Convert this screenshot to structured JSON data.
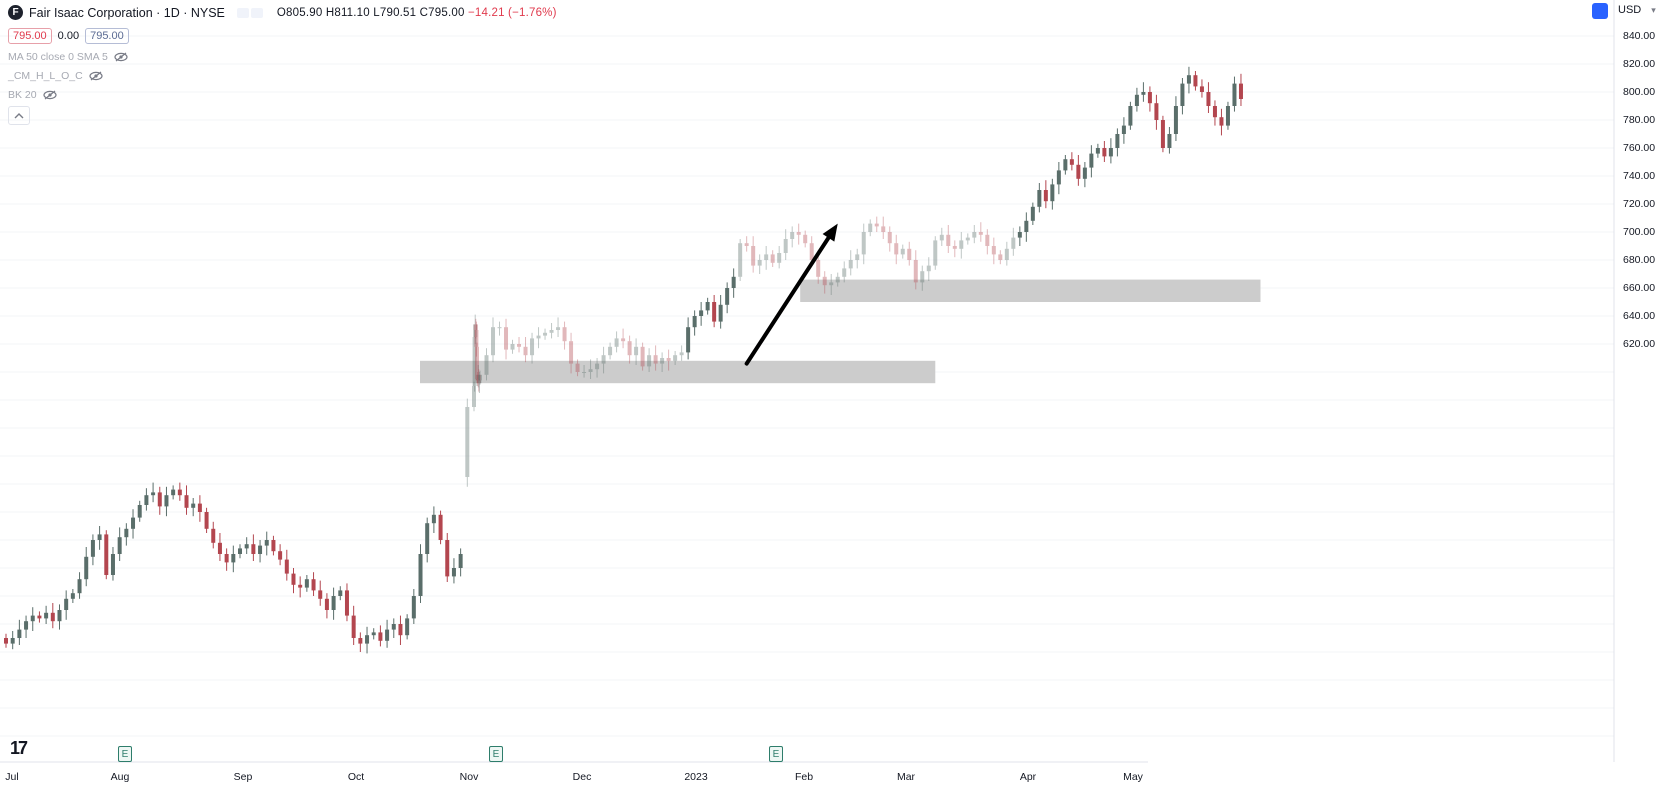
{
  "header": {
    "symbol_logo": "F",
    "title": "Fair Isaac Corporation · 1D · NYSE",
    "ohlc": {
      "open": "O805.90",
      "high": "H811.10",
      "low": "L790.51",
      "close": "C795.00",
      "change": "−14.21 (−1.76%)"
    },
    "sell_price": "795.00",
    "spread": "0.00",
    "buy_price": "795.00",
    "currency": "USD"
  },
  "indicators": [
    {
      "label": "MA 50 close 0 SMA 5",
      "icon": "eye-crossed-icon"
    },
    {
      "label": "_CM_H_L_O_C",
      "icon": "eye-crossed-icon"
    },
    {
      "label": "BK 20",
      "icon": "eye-crossed-icon"
    }
  ],
  "branding": {
    "logo": "17"
  },
  "earnings_markers": [
    {
      "label": "E",
      "x": "2022-07-28"
    },
    {
      "label": "E",
      "x": "2022-11-03"
    },
    {
      "label": "E",
      "x": "2023-01-26"
    }
  ],
  "colors": {
    "up": "#5a6e6a",
    "down": "#b3464f",
    "zone": "#c8c8c8",
    "arrow": "#000000"
  },
  "chart_data": {
    "type": "candlestick",
    "title": "Fair Isaac Corporation · 1D · NYSE",
    "x_labels": [
      "Jul",
      "Aug",
      "Sep",
      "Oct",
      "Nov",
      "Dec",
      "2023",
      "Feb",
      "Mar",
      "Apr",
      "May"
    ],
    "x_label_dates": [
      "2022-07-01",
      "2022-08-01",
      "2022-09-01",
      "2022-10-01",
      "2022-11-01",
      "2022-12-01",
      "2023-01-01",
      "2023-02-01",
      "2023-03-01",
      "2023-04-01",
      "2023-05-01"
    ],
    "y_ticks": [
      620,
      640,
      660,
      680,
      700,
      720,
      740,
      760,
      780,
      800,
      820,
      840
    ],
    "y_tick_labels": [
      "620.00",
      "640.00",
      "660.00",
      "680.00",
      "700.00",
      "720.00",
      "740.00",
      "760.00",
      "780.00",
      "800.00",
      "820.00",
      "840.00"
    ],
    "y_visible_range": [
      306,
      846
    ],
    "grid": true,
    "series": [
      {
        "segment": "pre-gap",
        "faded": false,
        "closes": [
          406,
          410,
          416,
          422,
          426,
          424,
          428,
          422,
          430,
          438,
          442,
          452,
          468,
          480,
          484,
          455,
          470,
          482,
          488,
          496,
          505,
          512,
          514,
          504,
          512,
          516,
          512,
          503,
          506,
          500,
          488,
          478,
          470,
          464,
          470,
          474,
          477,
          470,
          476,
          480,
          472,
          466,
          456,
          448,
          446,
          452,
          444,
          438,
          430,
          440,
          444,
          426,
          410,
          406,
          412,
          414,
          408,
          416,
          420,
          412,
          424,
          440,
          470,
          492,
          498,
          480,
          454,
          460,
          470
        ]
      },
      {
        "segment": "base-1",
        "faded": true,
        "closes": [
          575,
          590,
          625,
          634,
          630,
          618,
          595,
          594,
          598,
          592,
          594,
          598,
          612,
          632,
          632,
          616,
          620,
          618,
          612,
          624,
          626,
          628,
          630,
          632,
          622,
          606,
          600,
          600,
          602,
          606,
          612,
          618,
          624,
          622,
          612,
          618,
          604,
          612,
          606,
          610,
          608,
          612,
          614
        ]
      },
      {
        "segment": "breakout-rally",
        "faded": false,
        "closes": [
          632,
          640,
          644,
          650,
          636,
          648,
          660,
          668
        ]
      },
      {
        "segment": "base-2",
        "faded": true,
        "closes": [
          692,
          690,
          676,
          680,
          684,
          678,
          685,
          695,
          700,
          698,
          692,
          680,
          668,
          662,
          664,
          668,
          674,
          680,
          684,
          700,
          706,
          704,
          700,
          692,
          684,
          688,
          680,
          664,
          672,
          676,
          694,
          698,
          690,
          688,
          694,
          696,
          700,
          698,
          690,
          684,
          680,
          688,
          696
        ]
      },
      {
        "segment": "advance",
        "faded": false,
        "closes": [
          700,
          708,
          718,
          730,
          722,
          734,
          744,
          752,
          748,
          738,
          746,
          756,
          760,
          754,
          760,
          770,
          776,
          790,
          798,
          800,
          792,
          780,
          760,
          770,
          790,
          806,
          812,
          804,
          800,
          790,
          782,
          776,
          790,
          806,
          795
        ]
      }
    ],
    "zones": [
      {
        "label": "",
        "from_bar": 80,
        "to_bar": 150,
        "low": 592,
        "high": 608
      },
      {
        "label": "",
        "from_bar": 130,
        "to_bar": 200,
        "low": 650,
        "high": 666
      }
    ],
    "arrow": {
      "from_bar": 121,
      "from_price": 606,
      "to_bar": 135,
      "to_price": 706
    }
  }
}
